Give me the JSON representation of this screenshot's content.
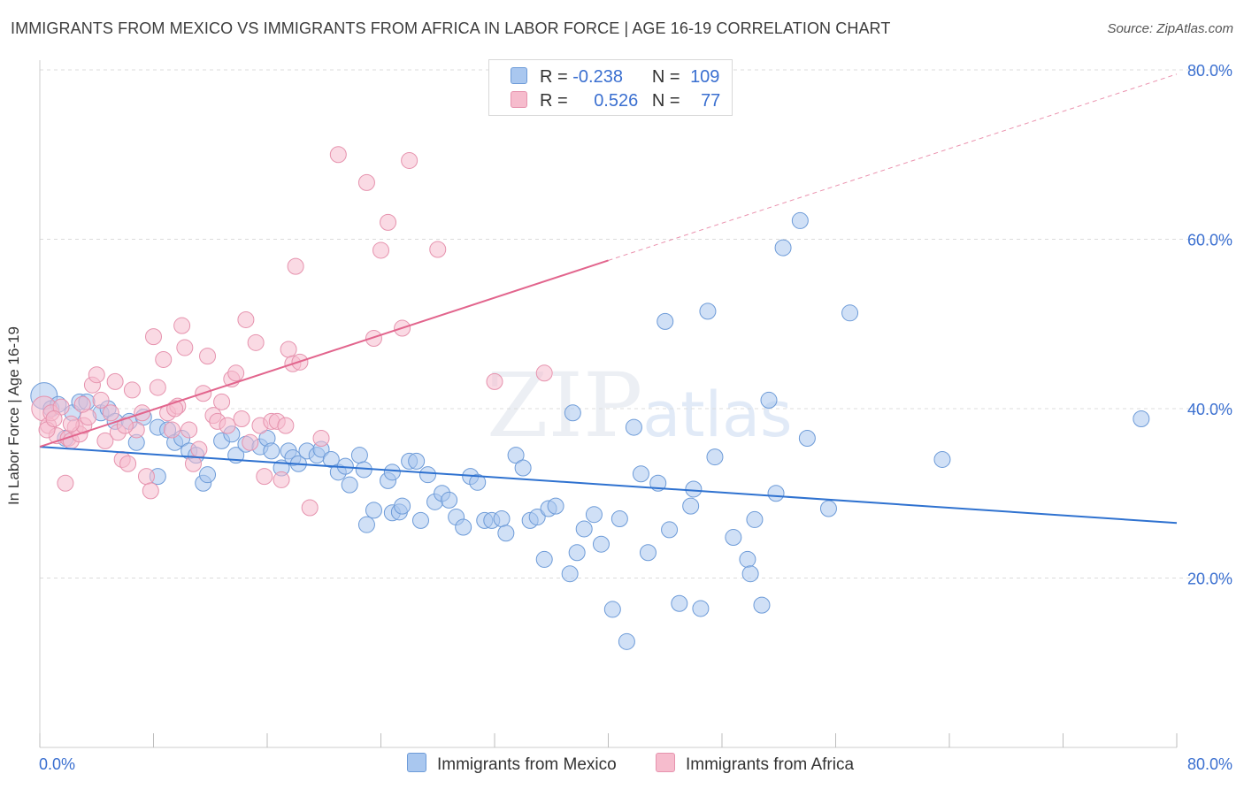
{
  "title": "IMMIGRANTS FROM MEXICO VS IMMIGRANTS FROM AFRICA IN LABOR FORCE | AGE 16-19 CORRELATION CHART",
  "source": "Source: ZipAtlas.com",
  "watermark": {
    "zip": "ZIP",
    "atlas": "atlas"
  },
  "legend": {
    "mexico": {
      "r_label": "R =",
      "r_value": "-0.238",
      "n_label": "N =",
      "n_value": "109"
    },
    "africa": {
      "r_label": "R =",
      "r_value": "0.526",
      "n_label": "N =",
      "n_value": "77"
    }
  },
  "colors": {
    "mexico_fill": "#a9c7ef",
    "mexico_stroke": "#6d9bd8",
    "mexico_line": "#2f72d0",
    "africa_fill": "#f6bccd",
    "africa_stroke": "#e693ae",
    "africa_line": "#e2658d",
    "axis_text": "#3a6fd0",
    "grid": "#dcdcdc"
  },
  "chart_data": {
    "type": "scatter",
    "title": "IMMIGRANTS FROM MEXICO VS IMMIGRANTS FROM AFRICA IN LABOR FORCE | AGE 16-19 CORRELATION CHART",
    "xlabel": "",
    "ylabel": "In Labor Force | Age 16-19",
    "xlim": [
      0,
      80
    ],
    "ylim": [
      0,
      80
    ],
    "x_ticks": [
      "0.0%",
      "80.0%"
    ],
    "y_ticks": [
      "20.0%",
      "40.0%",
      "60.0%",
      "80.0%"
    ],
    "y_tick_values": [
      20,
      40,
      60,
      80
    ],
    "grid": "horizontal dashed",
    "legend_position": "top-center",
    "series": [
      {
        "name": "Immigrants from Mexico",
        "points": [
          [
            0.3,
            41.5
          ],
          [
            0.8,
            40
          ],
          [
            1.3,
            40.5
          ],
          [
            1.8,
            36.5
          ],
          [
            2.3,
            39.5
          ],
          [
            2.8,
            40.8
          ],
          [
            3.3,
            40.8
          ],
          [
            4.3,
            39.5
          ],
          [
            4.8,
            40
          ],
          [
            5.3,
            38.5
          ],
          [
            6.3,
            38.5
          ],
          [
            6.8,
            36
          ],
          [
            7.3,
            39
          ],
          [
            8.3,
            37.8
          ],
          [
            8.3,
            32
          ],
          [
            9.0,
            37.5
          ],
          [
            9.5,
            36
          ],
          [
            10.0,
            36.5
          ],
          [
            10.5,
            35
          ],
          [
            11.0,
            34.5
          ],
          [
            11.5,
            31.2
          ],
          [
            11.8,
            32.2
          ],
          [
            12.8,
            36.2
          ],
          [
            13.5,
            37
          ],
          [
            13.8,
            34.5
          ],
          [
            14.5,
            35.8
          ],
          [
            15.5,
            35.5
          ],
          [
            16.0,
            36.5
          ],
          [
            16.3,
            35
          ],
          [
            17.0,
            33
          ],
          [
            17.5,
            35
          ],
          [
            17.8,
            34.2
          ],
          [
            18.2,
            33.5
          ],
          [
            18.8,
            35
          ],
          [
            19.5,
            34.5
          ],
          [
            19.8,
            35.2
          ],
          [
            20.5,
            34
          ],
          [
            21.0,
            32.5
          ],
          [
            21.5,
            33.2
          ],
          [
            21.8,
            31
          ],
          [
            22.5,
            34.5
          ],
          [
            22.8,
            32.8
          ],
          [
            23.0,
            26.3
          ],
          [
            23.5,
            28
          ],
          [
            24.5,
            31.5
          ],
          [
            24.8,
            32.5
          ],
          [
            24.8,
            27.7
          ],
          [
            25.3,
            27.8
          ],
          [
            25.5,
            28.5
          ],
          [
            26.0,
            33.8
          ],
          [
            26.5,
            33.8
          ],
          [
            26.8,
            26.8
          ],
          [
            27.3,
            32.2
          ],
          [
            27.8,
            29
          ],
          [
            28.3,
            30
          ],
          [
            28.8,
            29.2
          ],
          [
            29.3,
            27.2
          ],
          [
            29.8,
            26
          ],
          [
            30.3,
            32
          ],
          [
            30.8,
            31.3
          ],
          [
            31.3,
            26.8
          ],
          [
            31.8,
            26.8
          ],
          [
            32.5,
            27
          ],
          [
            32.8,
            25.3
          ],
          [
            33.5,
            34.5
          ],
          [
            34.0,
            33
          ],
          [
            34.5,
            26.8
          ],
          [
            35.0,
            27.2
          ],
          [
            35.5,
            22.2
          ],
          [
            35.8,
            28.2
          ],
          [
            36.3,
            28.5
          ],
          [
            37.3,
            20.5
          ],
          [
            37.5,
            39.5
          ],
          [
            37.8,
            23
          ],
          [
            38.3,
            25.8
          ],
          [
            39.0,
            27.5
          ],
          [
            39.5,
            24
          ],
          [
            40.3,
            16.3
          ],
          [
            40.8,
            27
          ],
          [
            41.3,
            12.5
          ],
          [
            41.8,
            37.8
          ],
          [
            42.3,
            32.3
          ],
          [
            42.8,
            23
          ],
          [
            43.5,
            31.2
          ],
          [
            44.0,
            50.3
          ],
          [
            44.3,
            25.7
          ],
          [
            45.0,
            17
          ],
          [
            45.8,
            28.5
          ],
          [
            46.0,
            30.5
          ],
          [
            46.5,
            16.4
          ],
          [
            47.0,
            51.5
          ],
          [
            47.5,
            34.3
          ],
          [
            48.8,
            24.8
          ],
          [
            49.8,
            22.2
          ],
          [
            50.0,
            20.5
          ],
          [
            50.3,
            26.9
          ],
          [
            50.8,
            16.8
          ],
          [
            51.3,
            41
          ],
          [
            51.8,
            30
          ],
          [
            52.3,
            59
          ],
          [
            53.5,
            62.2
          ],
          [
            54.0,
            36.5
          ],
          [
            55.5,
            28.2
          ],
          [
            57.0,
            51.3
          ],
          [
            63.5,
            34
          ],
          [
            77.5,
            38.8
          ]
        ],
        "trend": {
          "x": [
            0,
            80
          ],
          "y": [
            35.5,
            26.5
          ]
        }
      },
      {
        "name": "Immigrants from Africa",
        "points": [
          [
            0.3,
            40
          ],
          [
            0.6,
            38
          ],
          [
            0.8,
            39.5
          ],
          [
            1.2,
            36.8
          ],
          [
            1.5,
            40.2
          ],
          [
            1.8,
            31.2
          ],
          [
            2.0,
            36.5
          ],
          [
            2.2,
            36.2
          ],
          [
            2.5,
            37.8
          ],
          [
            2.8,
            37
          ],
          [
            3.1,
            38
          ],
          [
            3.4,
            39
          ],
          [
            3.7,
            42.8
          ],
          [
            4.0,
            44
          ],
          [
            4.3,
            41
          ],
          [
            4.6,
            36.2
          ],
          [
            5.0,
            39.5
          ],
          [
            5.3,
            43.2
          ],
          [
            5.5,
            37.2
          ],
          [
            5.8,
            34
          ],
          [
            6.2,
            33.5
          ],
          [
            6.5,
            42.2
          ],
          [
            6.8,
            37.5
          ],
          [
            7.2,
            39.5
          ],
          [
            7.5,
            32
          ],
          [
            7.8,
            30.3
          ],
          [
            8.0,
            48.5
          ],
          [
            8.3,
            42.5
          ],
          [
            8.7,
            45.8
          ],
          [
            9.0,
            39.5
          ],
          [
            9.3,
            37.5
          ],
          [
            9.7,
            40.3
          ],
          [
            10.0,
            49.8
          ],
          [
            10.2,
            47.2
          ],
          [
            10.5,
            37.5
          ],
          [
            10.8,
            33.5
          ],
          [
            11.2,
            35.2
          ],
          [
            11.5,
            41.8
          ],
          [
            11.8,
            46.2
          ],
          [
            12.2,
            39.2
          ],
          [
            12.5,
            38.5
          ],
          [
            12.8,
            40.8
          ],
          [
            13.2,
            38
          ],
          [
            13.5,
            43.5
          ],
          [
            13.8,
            44.2
          ],
          [
            14.2,
            38.8
          ],
          [
            14.5,
            50.5
          ],
          [
            14.8,
            36
          ],
          [
            15.2,
            47.8
          ],
          [
            15.5,
            38
          ],
          [
            15.8,
            32
          ],
          [
            16.3,
            38.5
          ],
          [
            16.7,
            38.5
          ],
          [
            17.0,
            31.6
          ],
          [
            17.3,
            38
          ],
          [
            17.5,
            47
          ],
          [
            17.8,
            45.3
          ],
          [
            18.0,
            56.8
          ],
          [
            18.3,
            45.5
          ],
          [
            19.0,
            28.3
          ],
          [
            19.8,
            36.5
          ],
          [
            21.0,
            70
          ],
          [
            23.0,
            66.7
          ],
          [
            23.5,
            48.3
          ],
          [
            24.0,
            58.7
          ],
          [
            24.5,
            62
          ],
          [
            25.5,
            49.5
          ],
          [
            26.0,
            69.3
          ],
          [
            28.0,
            58.8
          ],
          [
            32.0,
            43.2
          ],
          [
            35.5,
            44.2
          ],
          [
            0.5,
            37.5
          ],
          [
            1.0,
            38.8
          ],
          [
            2.2,
            38.2
          ],
          [
            3.0,
            40.5
          ],
          [
            6.0,
            38
          ],
          [
            9.5,
            40
          ]
        ],
        "trend": {
          "x": [
            0,
            40
          ],
          "y": [
            35.5,
            57.5
          ],
          "dashed_extension": {
            "x": [
              40,
              80
            ],
            "y": [
              57.5,
              79.5
            ]
          }
        }
      }
    ]
  },
  "bottom_legend": {
    "mexico": "Immigrants from Mexico",
    "africa": "Immigrants from Africa"
  },
  "y_axis_title": "In Labor Force | Age 16-19"
}
